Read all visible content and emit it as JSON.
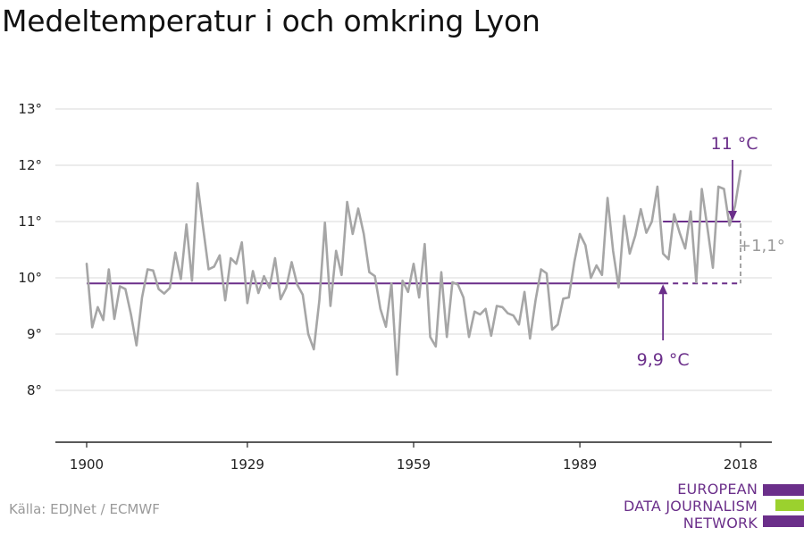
{
  "title": "Medeltemperatur i och omkring Lyon",
  "source": "Källa: EDJNet / ECMWF",
  "logo": {
    "lines": [
      "EUROPEAN",
      "DATA JOURNALISM",
      "NETWORK"
    ],
    "colors": [
      "#6b2f8a",
      "#9bd12e",
      "#6b2f8a"
    ]
  },
  "colors": {
    "series": "#a6a6a6",
    "accent": "#6b2f8a",
    "grid": "#d9d9d9",
    "axis": "#222222",
    "diff": "#9a9a9a"
  },
  "chart_data": {
    "type": "line",
    "title": "Medeltemperatur i och omkring Lyon",
    "xlabel": "",
    "ylabel": "",
    "xlim": [
      1900,
      2018
    ],
    "ylim": [
      7,
      13
    ],
    "x_ticks": [
      1900,
      1929,
      1959,
      1989,
      2018
    ],
    "x_tick_labels": [
      "1900",
      "1929",
      "1959",
      "1989",
      "2018"
    ],
    "y_ticks": [
      8,
      9,
      10,
      11,
      12,
      13
    ],
    "y_tick_labels": [
      "8°",
      "9°",
      "10°",
      "11°",
      "12°",
      "13°"
    ],
    "grid": true,
    "series": [
      {
        "x": [
          1900,
          1901,
          1902,
          1903,
          1904,
          1905,
          1906,
          1907,
          1908,
          1909,
          1910,
          1911,
          1912,
          1913,
          1914,
          1915,
          1916,
          1917,
          1918,
          1919,
          1920,
          1921,
          1922,
          1923,
          1924,
          1925,
          1926,
          1927,
          1928,
          1929,
          1930,
          1931,
          1932,
          1933,
          1934,
          1935,
          1936,
          1937,
          1938,
          1939,
          1940,
          1941,
          1942,
          1943,
          1944,
          1945,
          1946,
          1947,
          1948,
          1949,
          1950,
          1951,
          1952,
          1953,
          1954,
          1955,
          1956,
          1957,
          1958,
          1959,
          1960,
          1961,
          1962,
          1963,
          1964,
          1965,
          1966,
          1967,
          1968,
          1969,
          1970,
          1971,
          1972,
          1973,
          1974,
          1975,
          1976,
          1977,
          1978,
          1979,
          1980,
          1981,
          1982,
          1983,
          1984,
          1985,
          1986,
          1987,
          1988,
          1989,
          1990,
          1991,
          1992,
          1993,
          1994,
          1995,
          1996,
          1997,
          1998,
          1999,
          2000,
          2001,
          2002,
          2003,
          2004,
          2005,
          2006,
          2007,
          2008,
          2009,
          2010,
          2011,
          2012,
          2013,
          2014,
          2015,
          2016,
          2017,
          2018
        ],
        "values": [
          10.25,
          9.12,
          9.48,
          9.25,
          10.15,
          9.27,
          9.85,
          9.8,
          9.35,
          8.8,
          9.65,
          10.15,
          10.13,
          9.8,
          9.72,
          9.82,
          10.45,
          9.98,
          10.95,
          9.95,
          11.68,
          10.9,
          10.15,
          10.2,
          10.4,
          9.6,
          10.35,
          10.25,
          10.63,
          9.55,
          10.12,
          9.73,
          10.03,
          9.82,
          10.35,
          9.62,
          9.82,
          10.28,
          9.88,
          9.7,
          9.0,
          8.73,
          9.6,
          10.98,
          9.5,
          10.48,
          10.05,
          11.35,
          10.78,
          11.23,
          10.78,
          10.1,
          10.03,
          9.45,
          9.13,
          9.9,
          8.28,
          9.95,
          9.75,
          10.25,
          9.65,
          10.6,
          8.95,
          8.78,
          10.1,
          8.95,
          9.92,
          9.88,
          9.65,
          8.95,
          9.4,
          9.35,
          9.45,
          8.97,
          9.5,
          9.48,
          9.37,
          9.33,
          9.17,
          9.75,
          8.92,
          9.6,
          10.15,
          10.08,
          9.08,
          9.17,
          9.63,
          9.65,
          10.28,
          10.78,
          10.58,
          10.0,
          10.22,
          10.05,
          11.42,
          10.48,
          9.83,
          11.1,
          10.43,
          10.75,
          11.22,
          10.8,
          11.0,
          11.62,
          10.43,
          10.33,
          11.13,
          10.8,
          10.52,
          11.18,
          9.92,
          11.58,
          10.9,
          10.18,
          11.62,
          11.58,
          10.93,
          11.28,
          11.9
        ]
      }
    ],
    "reference_lines": [
      {
        "label": "9,9 °C",
        "value": 9.9,
        "x_start": 1900,
        "x_solid_end": 2004,
        "x_end": 2018
      },
      {
        "label": "11 °C",
        "value": 11.0,
        "x_start": 2004,
        "x_end": 2018
      }
    ],
    "annotations": [
      {
        "text": "11 °C",
        "x": 2018,
        "y": 11.0
      },
      {
        "text": "9,9 °C",
        "x": 2004,
        "y": 9.9
      },
      {
        "text": "+1,1°",
        "x": 2018,
        "y": 10.45
      }
    ]
  }
}
